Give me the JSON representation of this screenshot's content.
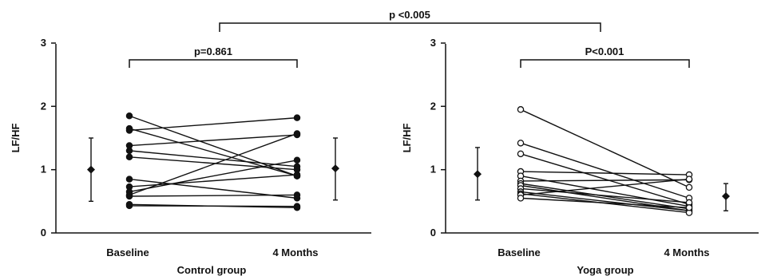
{
  "chart_data": [
    {
      "type": "scatter",
      "title": "",
      "group_label": "Control group",
      "ylabel": "LF/HF",
      "ylim": [
        0,
        3
      ],
      "yticks": [
        "0",
        "1",
        "2",
        "3"
      ],
      "categories": [
        "Baseline",
        "4 Months"
      ],
      "marker": "filled",
      "comparison_label": "p=0.861",
      "paired": [
        [
          1.85,
          0.9
        ],
        [
          1.65,
          0.9
        ],
        [
          1.62,
          1.82
        ],
        [
          1.38,
          1.55
        ],
        [
          1.3,
          1.05
        ],
        [
          1.2,
          1.0
        ],
        [
          0.85,
          0.55
        ],
        [
          0.73,
          0.92
        ],
        [
          0.65,
          1.15
        ],
        [
          0.6,
          1.57
        ],
        [
          0.58,
          0.6
        ],
        [
          0.45,
          0.4
        ],
        [
          0.43,
          0.42
        ]
      ],
      "summary": [
        {
          "position": "left",
          "mean": 1.0,
          "low": 0.5,
          "high": 1.5
        },
        {
          "position": "right",
          "mean": 1.02,
          "low": 0.52,
          "high": 1.5
        }
      ]
    },
    {
      "type": "scatter",
      "title": "",
      "group_label": "Yoga group",
      "ylabel": "LF/HF",
      "ylim": [
        0,
        3
      ],
      "yticks": [
        "0",
        "1",
        "2",
        "3"
      ],
      "categories": [
        "Baseline",
        "4 Months"
      ],
      "marker": "open",
      "comparison_label": "P<0.001",
      "paired": [
        [
          1.95,
          0.72
        ],
        [
          1.42,
          0.55
        ],
        [
          1.25,
          0.45
        ],
        [
          0.97,
          0.92
        ],
        [
          0.9,
          0.42
        ],
        [
          0.82,
          0.84
        ],
        [
          0.78,
          0.38
        ],
        [
          0.75,
          0.35
        ],
        [
          0.7,
          0.48
        ],
        [
          0.65,
          0.35
        ],
        [
          0.62,
          0.32
        ],
        [
          0.6,
          0.85
        ],
        [
          0.55,
          0.4
        ]
      ],
      "summary": [
        {
          "position": "left",
          "mean": 0.93,
          "low": 0.52,
          "high": 1.35
        },
        {
          "position": "right",
          "mean": 0.58,
          "low": 0.35,
          "high": 0.78
        }
      ]
    }
  ],
  "between_groups_label": "p <0.005",
  "colors": {
    "ink": "#111111",
    "open_fill": "#ffffff"
  }
}
